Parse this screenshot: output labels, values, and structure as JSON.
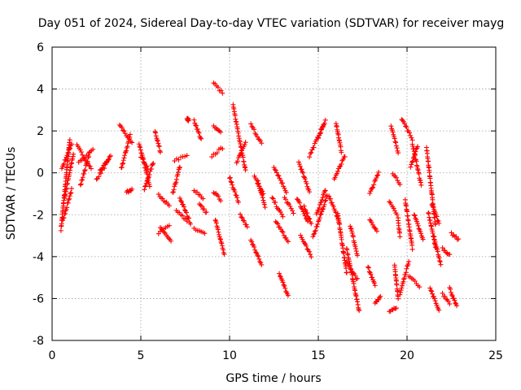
{
  "chart_data": {
    "type": "scatter",
    "title": "Day 051 of 2024, Sidereal Day-to-day VTEC variation (SDTVAR) for receiver mayg",
    "xlabel": "GPS time / hours",
    "ylabel": "SDTVAR / TECUs",
    "xlim": [
      0,
      25
    ],
    "ylim": [
      -8,
      6
    ],
    "xticks": [
      0,
      5,
      10,
      15,
      20,
      25
    ],
    "yticks": [
      -8,
      -6,
      -4,
      -2,
      0,
      2,
      4,
      6
    ],
    "grid": true,
    "marker": "+",
    "color": "#ff0000",
    "series": [
      {
        "name": "SDTVAR",
        "values_note": "tracks listed as [x_start, x_end, y_start, y_end]",
        "tracks": [
          [
            0.5,
            1.0,
            -2.7,
            1.6
          ],
          [
            0.55,
            1.1,
            0.2,
            1.4
          ],
          [
            0.7,
            1.2,
            -1.2,
            0.9
          ],
          [
            0.6,
            1.1,
            -2.3,
            -0.8
          ],
          [
            1.4,
            2.2,
            1.3,
            0.2
          ],
          [
            1.6,
            2.1,
            -0.6,
            0.9
          ],
          [
            1.5,
            2.3,
            0.5,
            1.1
          ],
          [
            2.5,
            3.2,
            -0.3,
            0.6
          ],
          [
            2.7,
            3.3,
            0.1,
            0.8
          ],
          [
            3.8,
            4.5,
            2.3,
            1.4
          ],
          [
            3.9,
            4.4,
            0.2,
            1.8
          ],
          [
            4.2,
            4.5,
            -0.9,
            -0.8
          ],
          [
            4.9,
            5.5,
            1.4,
            -0.6
          ],
          [
            5.0,
            5.4,
            0.8,
            0.2
          ],
          [
            5.2,
            5.7,
            -0.8,
            0.5
          ],
          [
            5.8,
            6.1,
            2.0,
            1.0
          ],
          [
            6.0,
            6.6,
            -1.0,
            -1.6
          ],
          [
            6.0,
            6.6,
            -2.9,
            -2.5
          ],
          [
            6.1,
            6.7,
            -2.6,
            -3.3
          ],
          [
            6.8,
            7.2,
            -1.0,
            0.3
          ],
          [
            6.9,
            7.6,
            0.6,
            0.8
          ],
          [
            7.0,
            7.6,
            -1.8,
            -2.3
          ],
          [
            7.2,
            7.8,
            -1.2,
            -2.4
          ],
          [
            7.6,
            7.7,
            2.6,
            2.5
          ],
          [
            8.0,
            8.4,
            2.5,
            1.6
          ],
          [
            8.0,
            8.6,
            -2.7,
            -2.9
          ],
          [
            8.0,
            8.5,
            -0.8,
            -1.2
          ],
          [
            8.3,
            8.7,
            -1.5,
            -1.9
          ],
          [
            9.1,
            9.6,
            4.3,
            3.8
          ],
          [
            9.1,
            9.5,
            2.2,
            1.9
          ],
          [
            9.0,
            9.6,
            0.8,
            1.2
          ],
          [
            9.1,
            9.5,
            -0.9,
            -1.3
          ],
          [
            9.2,
            9.7,
            -2.2,
            -3.9
          ],
          [
            10.2,
            10.9,
            3.2,
            0.1
          ],
          [
            10.0,
            10.5,
            -0.2,
            -1.4
          ],
          [
            10.4,
            10.9,
            0.5,
            1.4
          ],
          [
            10.6,
            11.0,
            -2.0,
            -2.6
          ],
          [
            11.2,
            11.8,
            2.3,
            1.4
          ],
          [
            11.4,
            11.9,
            -0.2,
            -1.0
          ],
          [
            11.2,
            11.8,
            -3.2,
            -4.4
          ],
          [
            11.6,
            12.0,
            -0.4,
            -1.6
          ],
          [
            12.5,
            13.2,
            0.3,
            -0.9
          ],
          [
            12.8,
            13.3,
            -4.8,
            -5.9
          ],
          [
            12.4,
            13.0,
            -1.2,
            -2.1
          ],
          [
            12.6,
            13.3,
            -2.3,
            -3.3
          ],
          [
            13.1,
            13.6,
            -1.2,
            -1.9
          ],
          [
            13.9,
            14.5,
            0.5,
            -0.9
          ],
          [
            13.8,
            14.4,
            -1.2,
            -2.3
          ],
          [
            14.0,
            14.6,
            -3.0,
            -4.0
          ],
          [
            14.2,
            14.6,
            -1.6,
            -2.4
          ],
          [
            14.5,
            15.3,
            0.8,
            2.3
          ],
          [
            14.9,
            15.4,
            -2.0,
            -0.8
          ],
          [
            14.7,
            15.5,
            -3.1,
            -1.1
          ],
          [
            15.0,
            15.4,
            1.7,
            2.5
          ],
          [
            15.6,
            16.2,
            -1.1,
            -2.4
          ],
          [
            16.0,
            16.3,
            2.4,
            1.0
          ],
          [
            15.9,
            16.5,
            -0.3,
            0.8
          ],
          [
            16.1,
            16.6,
            -2.0,
            -4.8
          ],
          [
            16.6,
            17.3,
            -3.6,
            -6.6
          ],
          [
            16.6,
            17.2,
            -4.2,
            -5.1
          ],
          [
            16.8,
            17.2,
            -2.5,
            -3.9
          ],
          [
            17.8,
            18.2,
            -4.5,
            -5.4
          ],
          [
            17.9,
            18.3,
            -2.2,
            -2.8
          ],
          [
            17.9,
            18.4,
            -1.0,
            0.0
          ],
          [
            18.2,
            18.5,
            -6.2,
            -5.9
          ],
          [
            19.0,
            19.4,
            -6.6,
            -6.4
          ],
          [
            19.1,
            19.5,
            2.2,
            1.0
          ],
          [
            19.2,
            19.6,
            0.0,
            -0.5
          ],
          [
            19.0,
            19.5,
            -1.4,
            -2.1
          ],
          [
            19.6,
            20.1,
            -5.8,
            -4.2
          ],
          [
            19.7,
            20.3,
            2.6,
            1.6
          ],
          [
            19.9,
            20.3,
            -1.3,
            -3.6
          ],
          [
            20.2,
            20.6,
            0.3,
            1.3
          ],
          [
            20.3,
            20.8,
            1.4,
            -0.6
          ],
          [
            20.1,
            20.7,
            -4.9,
            -5.4
          ],
          [
            20.4,
            20.9,
            -2.0,
            -3.2
          ],
          [
            21.1,
            21.6,
            1.2,
            -2.5
          ],
          [
            21.2,
            21.6,
            -1.9,
            -3.5
          ],
          [
            21.3,
            21.8,
            -5.5,
            -6.6
          ],
          [
            21.4,
            21.8,
            -1.5,
            -2.4
          ],
          [
            22.0,
            22.4,
            -5.8,
            -6.2
          ],
          [
            22.0,
            22.4,
            -3.6,
            -3.9
          ],
          [
            22.4,
            22.8,
            -5.5,
            -6.4
          ],
          [
            22.5,
            22.9,
            -2.9,
            -3.2
          ],
          [
            21.5,
            21.9,
            -3.0,
            -4.4
          ],
          [
            19.3,
            19.5,
            -4.4,
            -6.0
          ],
          [
            19.5,
            19.6,
            -2.3,
            -3.0
          ]
        ]
      }
    ]
  }
}
